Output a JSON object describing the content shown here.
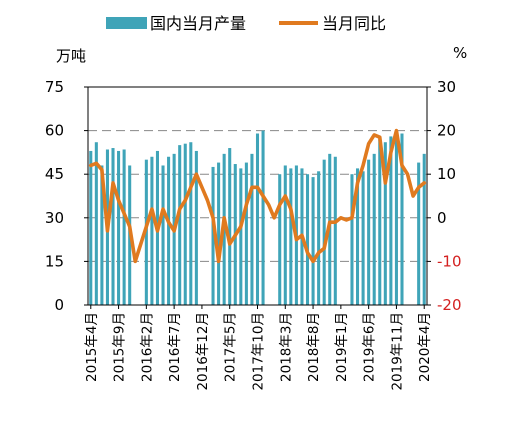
{
  "chart_data": {
    "type": "bar",
    "title": "",
    "left_axis": {
      "unit": "万吨",
      "ylim": [
        0,
        75
      ],
      "ticks": [
        "0",
        "15",
        "30",
        "45",
        "60",
        "75"
      ]
    },
    "right_axis": {
      "unit": "%",
      "ylim": [
        -20,
        30
      ],
      "ticks": [
        "-20",
        "-10",
        "0",
        "10",
        "20",
        "30"
      ]
    },
    "x": [
      "2015-04",
      "2015-05",
      "2015-06",
      "2015-07",
      "2015-08",
      "2015-09",
      "2015-10",
      "2015-11",
      "2015-12",
      "2016-01",
      "2016-02",
      "2016-03",
      "2016-04",
      "2016-05",
      "2016-06",
      "2016-07",
      "2016-08",
      "2016-09",
      "2016-10",
      "2016-11",
      "2016-12",
      "2017-01",
      "2017-02",
      "2017-03",
      "2017-04",
      "2017-05",
      "2017-06",
      "2017-07",
      "2017-08",
      "2017-09",
      "2017-10",
      "2017-11",
      "2017-12",
      "2018-01",
      "2018-02",
      "2018-03",
      "2018-04",
      "2018-05",
      "2018-06",
      "2018-07",
      "2018-08",
      "2018-09",
      "2018-10",
      "2018-11",
      "2018-12",
      "2019-01",
      "2019-02",
      "2019-03",
      "2019-04",
      "2019-05",
      "2019-06",
      "2019-07",
      "2019-08",
      "2019-09",
      "2019-10",
      "2019-11",
      "2019-12",
      "2020-01",
      "2020-02",
      "2020-03",
      "2020-04"
    ],
    "x_tick_labels": [
      "2015年4月",
      "2015年9月",
      "2016年2月",
      "2016年7月",
      "2016年12月",
      "2017年5月",
      "2017年10月",
      "2018年3月",
      "2018年8月",
      "2019年1月",
      "2019年6月",
      "2019年11月",
      "2020年4月"
    ],
    "x_tick_indices": [
      0,
      5,
      10,
      15,
      20,
      25,
      30,
      35,
      40,
      45,
      50,
      55,
      60
    ],
    "series": [
      {
        "name": "国内当月产量",
        "kind": "bar",
        "axis": "left",
        "color": "#3fa4b8",
        "values": [
          53,
          56,
          48,
          53.5,
          54,
          53,
          53.5,
          48,
          null,
          null,
          50,
          51,
          53,
          48,
          51,
          52,
          55,
          55.5,
          56,
          53,
          null,
          null,
          47.5,
          49,
          52,
          54,
          48.5,
          47,
          49,
          52,
          59,
          60,
          null,
          null,
          45,
          48,
          47,
          48,
          47,
          45,
          44,
          46,
          50,
          52,
          51,
          null,
          null,
          45,
          47,
          46,
          50,
          52,
          57,
          56,
          58,
          60,
          59,
          null,
          null,
          49,
          52
        ]
      },
      {
        "name": "当月同比",
        "kind": "line",
        "axis": "right",
        "color": "#e07a1f",
        "values": [
          12,
          12.5,
          11,
          -3,
          8,
          4,
          1,
          -2,
          -10,
          -6,
          -2,
          2,
          -3,
          2,
          -1,
          -3,
          2,
          4,
          7,
          10,
          7,
          4,
          0,
          -10,
          0,
          -6,
          -4,
          -2,
          3,
          7,
          7,
          5,
          3,
          0,
          3,
          5,
          2,
          -5,
          -4,
          -8,
          -10,
          -8,
          -7,
          -1,
          -1,
          0,
          -0.5,
          0,
          8,
          12,
          17,
          19,
          18.5,
          8,
          15,
          20,
          12,
          10,
          5,
          7,
          8
        ]
      }
    ],
    "legend": {
      "position": "top-center"
    },
    "grid": {
      "horizontal": true,
      "style": "dashed"
    }
  }
}
